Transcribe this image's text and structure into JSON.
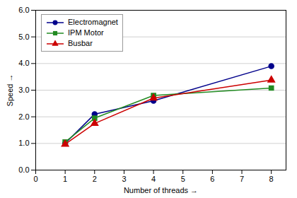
{
  "chart_data": {
    "type": "line",
    "xlabel": "Number of threads",
    "ylabel": "Speed",
    "x": [
      1,
      2,
      4,
      8
    ],
    "series": [
      {
        "name": "Electromagnet",
        "color": "#00008B",
        "marker": "circle",
        "values": [
          1.0,
          2.1,
          2.6,
          3.9
        ]
      },
      {
        "name": "IPM Motor",
        "color": "#228B22",
        "marker": "square",
        "values": [
          1.05,
          1.95,
          2.8,
          3.08
        ]
      },
      {
        "name": "Busbar",
        "color": "#CC0000",
        "marker": "triangle",
        "values": [
          0.97,
          1.75,
          2.7,
          3.38
        ]
      }
    ],
    "xlim": [
      0,
      8.5
    ],
    "ylim": [
      0.0,
      6.0
    ],
    "xticks": [
      0,
      1,
      2,
      3,
      4,
      5,
      6,
      7,
      8
    ],
    "yticks": [
      {
        "value": 0,
        "label": "0.0"
      },
      {
        "value": 1,
        "label": "1.0"
      },
      {
        "value": 2,
        "label": "2.0"
      },
      {
        "value": 3,
        "label": "3.0"
      },
      {
        "value": 4,
        "label": "4.0"
      },
      {
        "value": 5,
        "label": "5.0"
      },
      {
        "value": 6,
        "label": "6.0"
      }
    ],
    "grid": true,
    "legend": "upper left"
  }
}
